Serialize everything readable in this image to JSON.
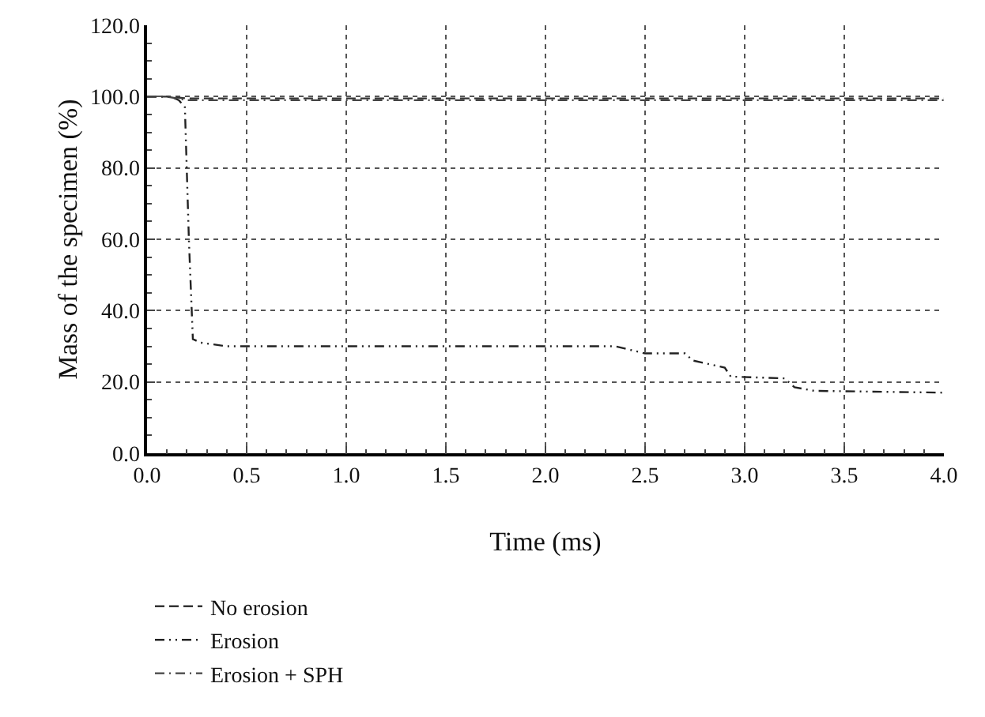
{
  "chart_data": {
    "type": "line",
    "xlabel": "Time (ms)",
    "ylabel": "Mass of the specimen (%)",
    "xlim": [
      0,
      4
    ],
    "xticks": [
      {
        "value": 0,
        "label": "0.0"
      },
      {
        "value": 0.5,
        "label": "0.5"
      },
      {
        "value": 1,
        "label": "1.0"
      },
      {
        "value": 1.5,
        "label": "1.5"
      },
      {
        "value": 2,
        "label": "2.0"
      },
      {
        "value": 2.5,
        "label": "2.5"
      },
      {
        "value": 3,
        "label": "3.0"
      },
      {
        "value": 3.5,
        "label": "3.5"
      },
      {
        "value": 4,
        "label": "4.0"
      }
    ],
    "ylim": [
      0,
      120
    ],
    "yticks": [
      {
        "value": 0,
        "label": "0.0"
      },
      {
        "value": 20,
        "label": "20.0"
      },
      {
        "value": 40,
        "label": "40.0"
      },
      {
        "value": 60,
        "label": "60.0"
      },
      {
        "value": 80,
        "label": "80.0"
      },
      {
        "value": 100,
        "label": "100.0"
      },
      {
        "value": 120,
        "label": "120.0"
      }
    ],
    "grid": true,
    "legend": "bottom left",
    "series": [
      {
        "name": "No erosion",
        "color": "#333333",
        "line_style": "dashed",
        "x": [
          0,
          0.1,
          0.2,
          4
        ],
        "values": [
          100,
          100,
          99.5,
          99.5
        ]
      },
      {
        "name": "Erosion",
        "color": "#222222",
        "line_style": "dashdotdot",
        "x": [
          0,
          0.12,
          0.16,
          0.19,
          0.21,
          0.23,
          0.27,
          0.4,
          2.35,
          2.5,
          2.7,
          2.74,
          2.9,
          2.93,
          3.2,
          3.25,
          3.35,
          4
        ],
        "values": [
          100,
          100,
          99,
          97,
          60,
          32,
          31,
          30,
          30,
          28,
          28,
          26,
          24,
          21.5,
          21,
          18.5,
          17.5,
          17
        ]
      },
      {
        "name": "Erosion + SPH",
        "color": "#444444",
        "line_style": "dashdot",
        "x": [
          0,
          0.1,
          0.2,
          4
        ],
        "values": [
          100,
          100,
          99,
          99
        ]
      }
    ]
  }
}
